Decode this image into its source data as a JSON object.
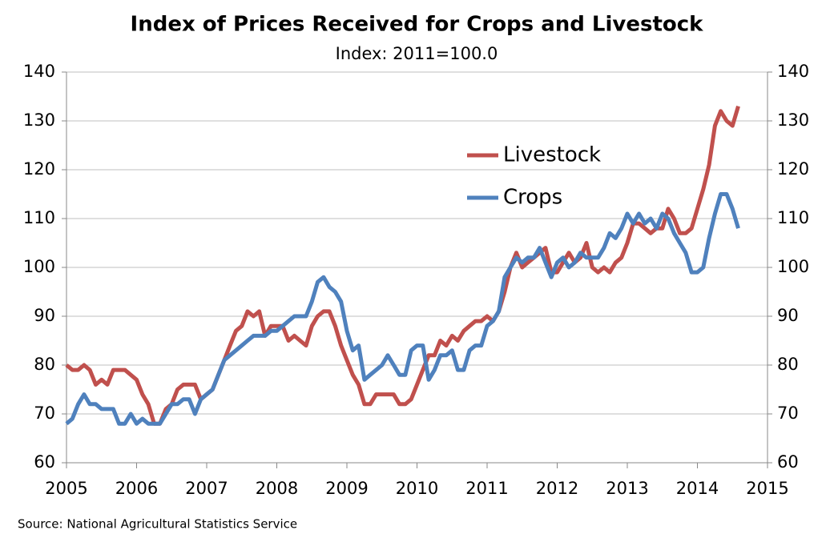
{
  "chart_data": {
    "type": "line",
    "title": "Index of Prices Received for Crops and Livestock",
    "subtitle": "Index: 2011=100.0",
    "source": "Source: National Agricultural Statistics Service",
    "x": [
      2005,
      2005.083,
      2005.167,
      2005.25,
      2005.333,
      2005.417,
      2005.5,
      2005.583,
      2005.667,
      2005.75,
      2005.833,
      2005.917,
      2006,
      2006.083,
      2006.167,
      2006.25,
      2006.333,
      2006.417,
      2006.5,
      2006.583,
      2006.667,
      2006.75,
      2006.833,
      2006.917,
      2007,
      2007.083,
      2007.167,
      2007.25,
      2007.333,
      2007.417,
      2007.5,
      2007.583,
      2007.667,
      2007.75,
      2007.833,
      2007.917,
      2008,
      2008.083,
      2008.167,
      2008.25,
      2008.333,
      2008.417,
      2008.5,
      2008.583,
      2008.667,
      2008.75,
      2008.833,
      2008.917,
      2009,
      2009.083,
      2009.167,
      2009.25,
      2009.333,
      2009.417,
      2009.5,
      2009.583,
      2009.667,
      2009.75,
      2009.833,
      2009.917,
      2010,
      2010.083,
      2010.167,
      2010.25,
      2010.333,
      2010.417,
      2010.5,
      2010.583,
      2010.667,
      2010.75,
      2010.833,
      2010.917,
      2011,
      2011.083,
      2011.167,
      2011.25,
      2011.333,
      2011.417,
      2011.5,
      2011.583,
      2011.667,
      2011.75,
      2011.833,
      2011.917,
      2012,
      2012.083,
      2012.167,
      2012.25,
      2012.333,
      2012.417,
      2012.5,
      2012.583,
      2012.667,
      2012.75,
      2012.833,
      2012.917,
      2013,
      2013.083,
      2013.167,
      2013.25,
      2013.333,
      2013.417,
      2013.5,
      2013.583,
      2013.667,
      2013.75,
      2013.833,
      2013.917,
      2014,
      2014.083,
      2014.167,
      2014.25,
      2014.333,
      2014.417,
      2014.5,
      2014.583
    ],
    "series": [
      {
        "name": "Livestock",
        "color": "#c0504d",
        "values": [
          80,
          79,
          79,
          80,
          79,
          76,
          77,
          76,
          79,
          79,
          79,
          78,
          77,
          74,
          72,
          68,
          68,
          71,
          72,
          75,
          76,
          76,
          76,
          73,
          74,
          75,
          78,
          81,
          84,
          87,
          88,
          91,
          90,
          91,
          86,
          88,
          88,
          88,
          85,
          86,
          85,
          84,
          88,
          90,
          91,
          91,
          88,
          84,
          81,
          78,
          76,
          72,
          72,
          74,
          74,
          74,
          74,
          72,
          72,
          73,
          76,
          79,
          82,
          82,
          85,
          84,
          86,
          85,
          87,
          88,
          89,
          89,
          90,
          89,
          91,
          95,
          100,
          103,
          100,
          101,
          102,
          103,
          104,
          99,
          99,
          101,
          103,
          101,
          102,
          105,
          100,
          99,
          100,
          99,
          101,
          102,
          105,
          109,
          109,
          108,
          107,
          108,
          108,
          112,
          110,
          107,
          107,
          108,
          112,
          116,
          121,
          129,
          132,
          130,
          129,
          133
        ]
      },
      {
        "name": "Crops",
        "color": "#4f81bd",
        "values": [
          68,
          69,
          72,
          74,
          72,
          72,
          71,
          71,
          71,
          68,
          68,
          70,
          68,
          69,
          68,
          68,
          68,
          70,
          72,
          72,
          73,
          73,
          70,
          73,
          74,
          75,
          78,
          81,
          82,
          83,
          84,
          85,
          86,
          86,
          86,
          87,
          87,
          88,
          89,
          90,
          90,
          90,
          93,
          97,
          98,
          96,
          95,
          93,
          87,
          83,
          84,
          77,
          78,
          79,
          80,
          82,
          80,
          78,
          78,
          83,
          84,
          84,
          77,
          79,
          82,
          82,
          83,
          79,
          79,
          83,
          84,
          84,
          88,
          89,
          91,
          98,
          100,
          102,
          101,
          102,
          102,
          104,
          101,
          98,
          101,
          102,
          100,
          101,
          103,
          102,
          102,
          102,
          104,
          107,
          106,
          108,
          111,
          109,
          111,
          109,
          110,
          108,
          111,
          110,
          107,
          105,
          103,
          99,
          99,
          100,
          106,
          111,
          115,
          115,
          112,
          108
        ]
      }
    ],
    "xlim": [
      2005,
      2015
    ],
    "xticks": [
      2005,
      2006,
      2007,
      2008,
      2009,
      2010,
      2011,
      2012,
      2013,
      2014,
      2015
    ],
    "ylim": [
      60,
      140
    ],
    "yticks": [
      60,
      70,
      80,
      90,
      100,
      110,
      120,
      130,
      140
    ],
    "grid": true
  }
}
